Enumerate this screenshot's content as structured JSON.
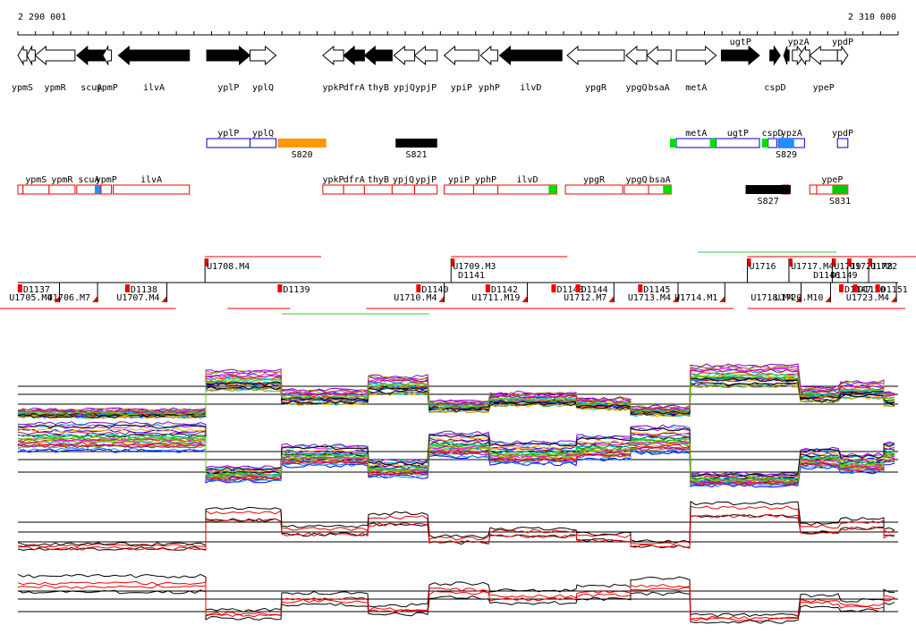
{
  "axis": {
    "left": "2 290 001",
    "right": "2 310 000"
  },
  "genes": [
    {
      "name": "ypmS",
      "start": 2290001,
      "end": 2290260,
      "strand": "-",
      "fill": "white",
      "labelPos": "below"
    },
    {
      "name": "",
      "start": 2290260,
      "end": 2290500,
      "strand": "-",
      "fill": "white",
      "labelPos": "none"
    },
    {
      "name": "ypmR",
      "start": 2290500,
      "end": 2291650,
      "strand": "-",
      "fill": "white",
      "labelPos": "below"
    },
    {
      "name": "scuA",
      "start": 2291700,
      "end": 2292550,
      "strand": "-",
      "fill": "black",
      "labelPos": "below"
    },
    {
      "name": "ypmP",
      "start": 2292450,
      "end": 2292700,
      "strand": "-",
      "fill": "white",
      "labelPos": "below"
    },
    {
      "name": "ilvA",
      "start": 2292900,
      "end": 2294950,
      "strand": "-",
      "fill": "black",
      "labelPos": "below"
    },
    {
      "name": "yplP",
      "start": 2295450,
      "end": 2296700,
      "strand": "+",
      "fill": "black",
      "labelPos": "below"
    },
    {
      "name": "yplQ",
      "start": 2296700,
      "end": 2297450,
      "strand": "+",
      "fill": "white",
      "labelPos": "below"
    },
    {
      "name": "ypkP",
      "start": 2298800,
      "end": 2299400,
      "strand": "-",
      "fill": "white",
      "labelPos": "below"
    },
    {
      "name": "dfrA",
      "start": 2299400,
      "end": 2300000,
      "strand": "-",
      "fill": "black",
      "labelPos": "below"
    },
    {
      "name": "thyB",
      "start": 2300000,
      "end": 2300800,
      "strand": "-",
      "fill": "black",
      "labelPos": "below"
    },
    {
      "name": "ypjQ",
      "start": 2300850,
      "end": 2301450,
      "strand": "-",
      "fill": "white",
      "labelPos": "below"
    },
    {
      "name": "ypjP",
      "start": 2301450,
      "end": 2302100,
      "strand": "-",
      "fill": "white",
      "labelPos": "below"
    },
    {
      "name": "ypiP",
      "start": 2302300,
      "end": 2303300,
      "strand": "-",
      "fill": "white",
      "labelPos": "below"
    },
    {
      "name": "yphP",
      "start": 2303350,
      "end": 2303850,
      "strand": "-",
      "fill": "white",
      "labelPos": "below"
    },
    {
      "name": "ilvD",
      "start": 2303900,
      "end": 2305700,
      "strand": "-",
      "fill": "black",
      "labelPos": "below"
    },
    {
      "name": "ypgR",
      "start": 2305850,
      "end": 2307500,
      "strand": "-",
      "fill": "white",
      "labelPos": "below"
    },
    {
      "name": "ypgQ",
      "start": 2307550,
      "end": 2308150,
      "strand": "-",
      "fill": "white",
      "labelPos": "below"
    },
    {
      "name": "bsaA",
      "start": 2308150,
      "end": 2308850,
      "strand": "-",
      "fill": "white",
      "labelPos": "below"
    },
    {
      "name": "metA",
      "start": 2309000,
      "end": 2310150,
      "strand": "+",
      "fill": "white",
      "labelPos": "below"
    },
    {
      "name": "ugtP",
      "start": 2310300,
      "end": 2311400,
      "strand": "+",
      "fill": "black",
      "labelPos": "above"
    },
    {
      "name": "cspD",
      "start": 2311700,
      "end": 2312000,
      "strand": "+",
      "fill": "black",
      "labelPos": "below"
    },
    {
      "name": "",
      "start": 2312100,
      "end": 2312200,
      "strand": "-",
      "fill": "black",
      "labelPos": "none"
    },
    {
      "name": "ypzA",
      "start": 2312350,
      "end": 2312700,
      "strand": "+",
      "fill": "white",
      "labelPos": "above"
    },
    {
      "name": "",
      "start": 2312550,
      "end": 2312850,
      "strand": "-",
      "fill": "white",
      "labelPos": "none"
    },
    {
      "name": "ypeP",
      "start": 2312850,
      "end": 2313650,
      "strand": "-",
      "fill": "white",
      "labelPos": "below"
    },
    {
      "name": "ypdP",
      "start": 2313650,
      "end": 2313950,
      "strand": "+",
      "fill": "white",
      "labelPos": "above"
    }
  ],
  "operons": {
    "upper": [
      {
        "label": "yplP",
        "start": 2295450,
        "end": 2296700,
        "color": "blue",
        "tag": "none"
      },
      {
        "label": "yplQ",
        "start": 2296700,
        "end": 2297450,
        "color": "blue",
        "tag": "none"
      },
      {
        "label": "metA",
        "start": 2309000,
        "end": 2310150,
        "color": "blue",
        "tag": "green-left"
      },
      {
        "label": "ugtP",
        "start": 2310150,
        "end": 2311400,
        "color": "blue",
        "tag": "green-left"
      },
      {
        "label": "cspD",
        "start": 2311650,
        "end": 2311900,
        "color": "blue",
        "tag": "green-left"
      },
      {
        "label": "ypzA",
        "start": 2311950,
        "end": 2312700,
        "color": "blue",
        "tag": "blue-fill"
      },
      {
        "label": "ypdP",
        "start": 2313650,
        "end": 2313950,
        "color": "blue",
        "tag": "none"
      }
    ],
    "lower": [
      {
        "label": "",
        "start": 2290001,
        "end": 2290150,
        "color": "red",
        "tag": "none"
      },
      {
        "label": "ypmS",
        "start": 2290150,
        "end": 2290900,
        "color": "red",
        "tag": "none"
      },
      {
        "label": "ypmR",
        "start": 2290900,
        "end": 2291650,
        "color": "red",
        "tag": "none"
      },
      {
        "label": "scuA",
        "start": 2291700,
        "end": 2292400,
        "color": "red",
        "tag": "blue-right"
      },
      {
        "label": "ypmP",
        "start": 2292400,
        "end": 2292700,
        "color": "red",
        "tag": "none"
      },
      {
        "label": "ilvA",
        "start": 2292750,
        "end": 2294950,
        "color": "red",
        "tag": "none"
      },
      {
        "label": "ypkP",
        "start": 2298800,
        "end": 2299400,
        "color": "red",
        "tag": "none"
      },
      {
        "label": "dfrA",
        "start": 2299400,
        "end": 2300000,
        "color": "red",
        "tag": "none"
      },
      {
        "label": "thyB",
        "start": 2300000,
        "end": 2300800,
        "color": "red",
        "tag": "none"
      },
      {
        "label": "ypjQ",
        "start": 2300800,
        "end": 2301450,
        "color": "red",
        "tag": "none"
      },
      {
        "label": "ypjP",
        "start": 2301450,
        "end": 2302100,
        "color": "red",
        "tag": "none"
      },
      {
        "label": "ypiP",
        "start": 2302300,
        "end": 2303150,
        "color": "red",
        "tag": "none"
      },
      {
        "label": "yphP",
        "start": 2303150,
        "end": 2303850,
        "color": "red",
        "tag": "none"
      },
      {
        "label": "ilvD",
        "start": 2303850,
        "end": 2305550,
        "color": "red",
        "tag": "green-right"
      },
      {
        "label": "ypgR",
        "start": 2305800,
        "end": 2307450,
        "color": "red",
        "tag": "none"
      },
      {
        "label": "ypgQ",
        "start": 2307500,
        "end": 2308200,
        "color": "red",
        "tag": "none"
      },
      {
        "label": "bsaA",
        "start": 2308200,
        "end": 2308850,
        "color": "red",
        "tag": "green-right"
      },
      {
        "label": "",
        "start": 2312050,
        "end": 2312250,
        "color": "red",
        "tag": "none"
      },
      {
        "label": "",
        "start": 2312850,
        "end": 2313050,
        "color": "red",
        "tag": "none"
      },
      {
        "label": "ypeP",
        "start": 2313050,
        "end": 2313950,
        "color": "red",
        "tag": "green-right"
      }
    ]
  },
  "features": [
    {
      "label": "S820",
      "start": 2297500,
      "end": 2298900,
      "row": "upper",
      "color": "#ff9900"
    },
    {
      "label": "S821",
      "start": 2300900,
      "end": 2302100,
      "row": "upper",
      "color": "#000000"
    },
    {
      "label": "S829",
      "start": 2311950,
      "end": 2312400,
      "row": "upper",
      "color": "#1e90ff"
    },
    {
      "label": "S827",
      "start": 2311000,
      "end": 2312300,
      "row": "lower",
      "color": "#000000"
    },
    {
      "label": "S831",
      "start": 2313500,
      "end": 2313950,
      "row": "lower",
      "color": "#00cc00"
    }
  ],
  "upLabels": [
    {
      "label": "U1708.M4",
      "pos": 2295400
    },
    {
      "label": "U1709.M3",
      "pos": 2302500
    },
    {
      "label": "U1716",
      "pos": 2311050
    },
    {
      "label": "U1717.M4",
      "pos": 2312250
    },
    {
      "label": "U1719",
      "pos": 2313500
    },
    {
      "label": "U1721.M8",
      "pos": 2313950
    },
    {
      "label": "U1722",
      "pos": 2314550
    }
  ],
  "midLabels": [
    {
      "label": "D1141",
      "pos": 2302700
    },
    {
      "label": "D1146",
      "pos": 2312950
    },
    {
      "label": "D1149",
      "pos": 2313450
    }
  ],
  "downLabels": [
    {
      "label": "D1137",
      "pos": 2290100
    },
    {
      "label": "U1705.M4",
      "pos": 2291200
    },
    {
      "label": "U1706.M7",
      "pos": 2292300
    },
    {
      "label": "D1138",
      "pos": 2293200
    },
    {
      "label": "U1707.M4",
      "pos": 2294300
    },
    {
      "label": "D1139",
      "pos": 2297600
    },
    {
      "label": "D1140",
      "pos": 2301600
    },
    {
      "label": "U1710.M4",
      "pos": 2302300
    },
    {
      "label": "D1142",
      "pos": 2303600
    },
    {
      "label": "U1711.M19",
      "pos": 2304700
    },
    {
      "label": "D1143",
      "pos": 2305500
    },
    {
      "label": "D1144",
      "pos": 2306200
    },
    {
      "label": "U1712.M7",
      "pos": 2307200
    },
    {
      "label": "D1145",
      "pos": 2308000
    },
    {
      "label": "U1713.M4",
      "pos": 2309050
    },
    {
      "label": "U1714.M1",
      "pos": 2310400
    },
    {
      "label": "U1718.M4",
      "pos": 2312600
    },
    {
      "label": "U1720.M10",
      "pos": 2313450
    },
    {
      "label": "D1147",
      "pos": 2313800
    },
    {
      "label": "D1150",
      "pos": 2314200
    },
    {
      "label": "D1151",
      "pos": 2314850
    },
    {
      "label": "U1723.M4",
      "pos": 2315350
    }
  ]
}
